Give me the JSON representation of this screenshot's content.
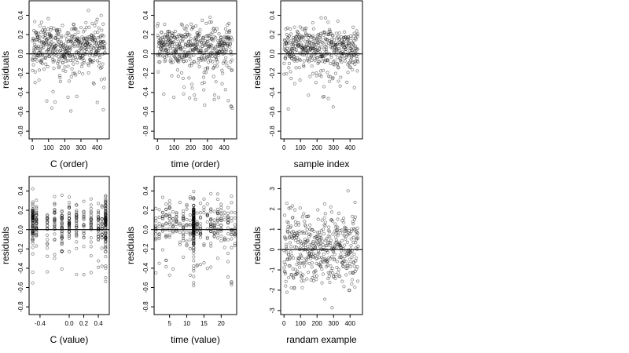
{
  "chart_data": [
    {
      "type": "scatter",
      "panel": "c-order",
      "xlabel": "C (order)",
      "ylabel": "residuals",
      "xlim": [
        -20,
        475
      ],
      "ylim": [
        -0.88,
        0.55
      ],
      "xticks": [
        0,
        100,
        200,
        300,
        400
      ],
      "xticklabels": [
        "0",
        "100",
        "200",
        "300",
        "400"
      ],
      "yticks": [
        -0.8,
        -0.6,
        -0.4,
        -0.2,
        0.0,
        0.2,
        0.4
      ],
      "yticklabels": [
        "-0.8",
        "-0.6",
        "-0.4",
        "-0.2",
        "0.0",
        "0.2",
        "0.4"
      ],
      "reference_line_y": 0,
      "grid": false,
      "points": {
        "x_kind": "order",
        "n": 450,
        "seed": 11,
        "dist": "skew_residual",
        "scale": 0.2
      }
    },
    {
      "type": "scatter",
      "panel": "time-order",
      "xlabel": "time (order)",
      "ylabel": "residuals",
      "xlim": [
        -20,
        475
      ],
      "ylim": [
        -0.88,
        0.55
      ],
      "xticks": [
        0,
        100,
        200,
        300,
        400
      ],
      "xticklabels": [
        "0",
        "100",
        "200",
        "300",
        "400"
      ],
      "yticks": [
        -0.8,
        -0.6,
        -0.4,
        -0.2,
        0.0,
        0.2,
        0.4
      ],
      "yticklabels": [
        "-0.8",
        "-0.6",
        "-0.4",
        "-0.2",
        "0.0",
        "0.2",
        "0.4"
      ],
      "reference_line_y": 0,
      "grid": false,
      "points": {
        "x_kind": "order",
        "n": 450,
        "seed": 23,
        "dist": "skew_residual",
        "scale": 0.2
      }
    },
    {
      "type": "scatter",
      "panel": "sample-index",
      "xlabel": "sample index",
      "ylabel": "residuals",
      "xlim": [
        -20,
        475
      ],
      "ylim": [
        -0.88,
        0.55
      ],
      "xticks": [
        0,
        100,
        200,
        300,
        400
      ],
      "xticklabels": [
        "0",
        "100",
        "200",
        "300",
        "400"
      ],
      "yticks": [
        -0.8,
        -0.6,
        -0.4,
        -0.2,
        0.0,
        0.2,
        0.4
      ],
      "yticklabels": [
        "-0.8",
        "-0.6",
        "-0.4",
        "-0.2",
        "0.0",
        "0.2",
        "0.4"
      ],
      "reference_line_y": 0,
      "grid": false,
      "points": {
        "x_kind": "order",
        "n": 450,
        "seed": 37,
        "dist": "skew_residual",
        "scale": 0.2
      }
    },
    {
      "type": "scatter",
      "panel": "c-value",
      "xlabel": "C (value)",
      "ylabel": "residuals",
      "xlim": [
        -0.55,
        0.55
      ],
      "ylim": [
        -0.88,
        0.55
      ],
      "xticks": [
        -0.4,
        0.0,
        0.2,
        0.4
      ],
      "xticklabels": [
        "-0.4",
        "0.0",
        "0.2",
        "0.4"
      ],
      "yticks": [
        -0.8,
        -0.6,
        -0.4,
        -0.2,
        0.0,
        0.2,
        0.4
      ],
      "yticklabels": [
        "-0.8",
        "-0.6",
        "-0.4",
        "-0.2",
        "0.0",
        "0.2",
        "0.4"
      ],
      "reference_line_y": 0,
      "grid": false,
      "points": {
        "x_kind": "discrete",
        "x_levels": [
          -0.5,
          -0.45,
          -0.3,
          -0.2,
          -0.1,
          0.0,
          0.1,
          0.2,
          0.3,
          0.4,
          0.45,
          0.5
        ],
        "heavy_levels": [
          -0.5,
          0.5
        ],
        "n": 450,
        "seed": 51,
        "dist": "skew_residual",
        "scale": 0.2
      }
    },
    {
      "type": "scatter",
      "panel": "time-value",
      "xlabel": "time (value)",
      "ylabel": "residuals",
      "xlim": [
        0.5,
        24.5
      ],
      "ylim": [
        -0.88,
        0.55
      ],
      "xticks": [
        5,
        10,
        15,
        20
      ],
      "xticklabels": [
        "5",
        "10",
        "15",
        "20"
      ],
      "yticks": [
        -0.8,
        -0.6,
        -0.4,
        -0.2,
        0.0,
        0.2,
        0.4
      ],
      "yticklabels": [
        "-0.8",
        "-0.6",
        "-0.4",
        "-0.2",
        "0.0",
        "0.2",
        "0.4"
      ],
      "reference_line_y": 0,
      "grid": false,
      "points": {
        "x_kind": "discrete",
        "x_levels": [
          1,
          2,
          3,
          4,
          5,
          6,
          7,
          8,
          9,
          10,
          11,
          12,
          13,
          14,
          15,
          16,
          17,
          18,
          19,
          20,
          21,
          22,
          23,
          24
        ],
        "heavy_levels": [
          12
        ],
        "n": 450,
        "seed": 67,
        "dist": "skew_residual",
        "scale": 0.2
      }
    },
    {
      "type": "scatter",
      "panel": "random-example",
      "xlabel": "randam example",
      "ylabel": "residuals",
      "xlim": [
        -20,
        475
      ],
      "ylim": [
        -3.2,
        3.6
      ],
      "xticks": [
        0,
        100,
        200,
        300,
        400
      ],
      "xticklabels": [
        "0",
        "100",
        "200",
        "300",
        "400"
      ],
      "yticks": [
        -3,
        -2,
        -1,
        0,
        1,
        2,
        3
      ],
      "yticklabels": [
        "-3",
        "-2",
        "-1",
        "0",
        "1",
        "2",
        "3"
      ],
      "reference_line_y": 0,
      "grid": false,
      "points": {
        "x_kind": "order",
        "n": 450,
        "seed": 83,
        "dist": "normal",
        "scale": 1.0
      }
    }
  ]
}
